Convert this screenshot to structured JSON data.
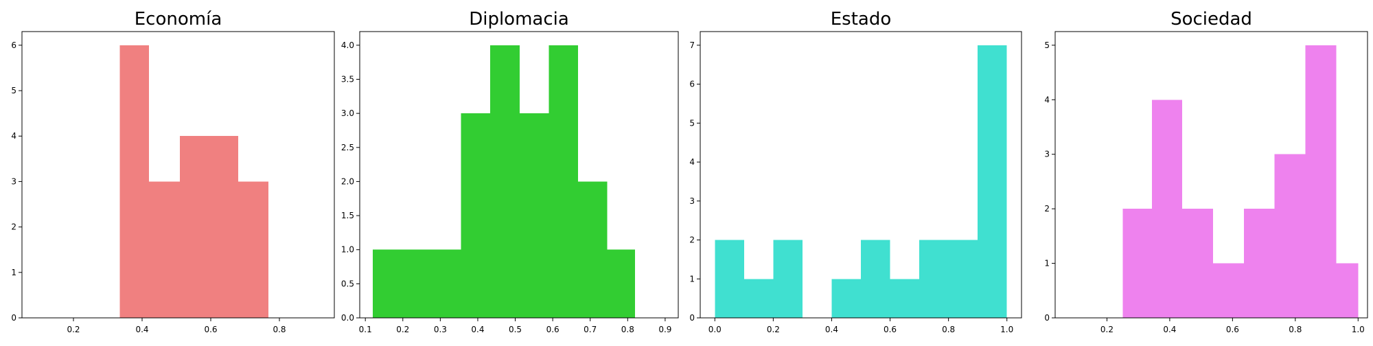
{
  "chart_data": [
    {
      "type": "bar",
      "title": "Economía",
      "color": "#f08080",
      "xlim": [
        0.05,
        0.96
      ],
      "ylim": [
        0,
        6.3
      ],
      "xticks": [
        0.2,
        0.4,
        0.6,
        0.8
      ],
      "xtick_labels": [
        "0.2",
        "0.4",
        "0.6",
        "0.8"
      ],
      "yticks": [
        0,
        1,
        2,
        3,
        4,
        5,
        6
      ],
      "ytick_labels": [
        "0",
        "1",
        "2",
        "3",
        "4",
        "5",
        "6"
      ],
      "bins": [
        {
          "x0": 0.335,
          "x1": 0.42,
          "count": 6
        },
        {
          "x0": 0.42,
          "x1": 0.51,
          "count": 3
        },
        {
          "x0": 0.51,
          "x1": 0.595,
          "count": 4
        },
        {
          "x0": 0.595,
          "x1": 0.68,
          "count": 4
        },
        {
          "x0": 0.68,
          "x1": 0.768,
          "count": 3
        }
      ]
    },
    {
      "type": "bar",
      "title": "Diplomacia",
      "color": "#32cd32",
      "xlim": [
        0.085,
        0.935
      ],
      "ylim": [
        0,
        4.2
      ],
      "xticks": [
        0.1,
        0.2,
        0.3,
        0.4,
        0.5,
        0.6,
        0.7,
        0.8,
        0.9
      ],
      "xtick_labels": [
        "0.1",
        "0.2",
        "0.3",
        "0.4",
        "0.5",
        "0.6",
        "0.7",
        "0.8",
        "0.9"
      ],
      "yticks": [
        0,
        0.5,
        1,
        1.5,
        2,
        2.5,
        3,
        3.5,
        4
      ],
      "ytick_labels": [
        "0.0",
        "0.5",
        "1.0",
        "1.5",
        "2.0",
        "2.5",
        "3.0",
        "3.5",
        "4.0"
      ],
      "bins": [
        {
          "x0": 0.12,
          "x1": 0.198,
          "count": 1
        },
        {
          "x0": 0.198,
          "x1": 0.276,
          "count": 1
        },
        {
          "x0": 0.276,
          "x1": 0.355,
          "count": 1
        },
        {
          "x0": 0.355,
          "x1": 0.433,
          "count": 3
        },
        {
          "x0": 0.433,
          "x1": 0.512,
          "count": 4
        },
        {
          "x0": 0.512,
          "x1": 0.59,
          "count": 3
        },
        {
          "x0": 0.59,
          "x1": 0.668,
          "count": 4
        },
        {
          "x0": 0.668,
          "x1": 0.745,
          "count": 2
        },
        {
          "x0": 0.745,
          "x1": 0.82,
          "count": 1
        }
      ]
    },
    {
      "type": "bar",
      "title": "Estado",
      "color": "#40e0d0",
      "xlim": [
        -0.05,
        1.05
      ],
      "ylim": [
        0,
        7.35
      ],
      "xticks": [
        0,
        0.2,
        0.4,
        0.6,
        0.8,
        1
      ],
      "xtick_labels": [
        "0.0",
        "0.2",
        "0.4",
        "0.6",
        "0.8",
        "1.0"
      ],
      "yticks": [
        0,
        1,
        2,
        3,
        4,
        5,
        6,
        7
      ],
      "ytick_labels": [
        "0",
        "1",
        "2",
        "3",
        "4",
        "5",
        "6",
        "7"
      ],
      "bins": [
        {
          "x0": 0.0,
          "x1": 0.1,
          "count": 2
        },
        {
          "x0": 0.1,
          "x1": 0.2,
          "count": 1
        },
        {
          "x0": 0.2,
          "x1": 0.3,
          "count": 2
        },
        {
          "x0": 0.3,
          "x1": 0.4,
          "count": 0
        },
        {
          "x0": 0.4,
          "x1": 0.5,
          "count": 1
        },
        {
          "x0": 0.5,
          "x1": 0.6,
          "count": 2
        },
        {
          "x0": 0.6,
          "x1": 0.7,
          "count": 1
        },
        {
          "x0": 0.7,
          "x1": 0.8,
          "count": 2
        },
        {
          "x0": 0.8,
          "x1": 0.9,
          "count": 2
        },
        {
          "x0": 0.9,
          "x1": 1.0,
          "count": 7
        }
      ]
    },
    {
      "type": "bar",
      "title": "Sociedad",
      "color": "#ee82ee",
      "xlim": [
        0.035,
        1.03
      ],
      "ylim": [
        0,
        5.25
      ],
      "xticks": [
        0.2,
        0.4,
        0.6,
        0.8,
        1
      ],
      "xtick_labels": [
        "0.2",
        "0.4",
        "0.6",
        "0.8",
        "1.0"
      ],
      "yticks": [
        0,
        1,
        2,
        3,
        4,
        5
      ],
      "ytick_labels": [
        "0",
        "1",
        "2",
        "3",
        "4",
        "5"
      ],
      "bins": [
        {
          "x0": 0.25,
          "x1": 0.343,
          "count": 2
        },
        {
          "x0": 0.343,
          "x1": 0.44,
          "count": 4
        },
        {
          "x0": 0.44,
          "x1": 0.538,
          "count": 2
        },
        {
          "x0": 0.538,
          "x1": 0.636,
          "count": 1
        },
        {
          "x0": 0.636,
          "x1": 0.734,
          "count": 2
        },
        {
          "x0": 0.734,
          "x1": 0.832,
          "count": 3
        },
        {
          "x0": 0.832,
          "x1": 0.93,
          "count": 5
        },
        {
          "x0": 0.93,
          "x1": 1.0,
          "count": 1
        }
      ]
    }
  ]
}
